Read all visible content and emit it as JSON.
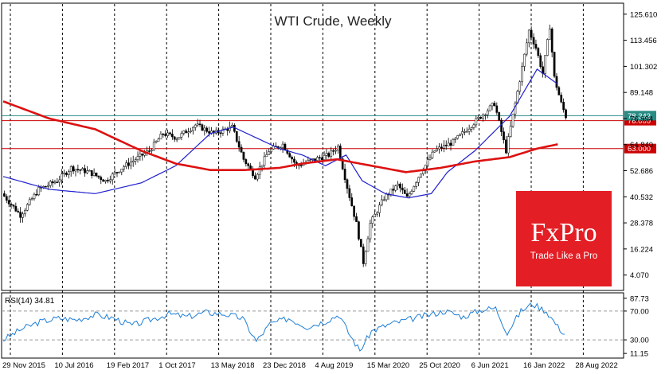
{
  "chart_data": [
    {
      "type": "candlestick",
      "title": "WTI Crude, Weekly",
      "y_ticks": [
        4.07,
        16.224,
        28.378,
        40.532,
        52.686,
        64.84,
        76.994,
        89.148,
        101.302,
        113.456,
        125.61
      ],
      "y_tick_labels": [
        "4.070",
        "16.224",
        "28.378",
        "40.532",
        "52.686",
        "64.840",
        "76.994",
        "89.148",
        "101.302",
        "113.456",
        "125.610"
      ],
      "ylim": [
        -2,
        130
      ],
      "x_tick_labels": [
        "29 Nov 2015",
        "10 Jul 2016",
        "19 Feb 2017",
        "1 Oct 2017",
        "13 May 2018",
        "23 Dec 2018",
        "4 Aug 2019",
        "15 Mar 2020",
        "25 Oct 2020",
        "6 Jun 2021",
        "16 Jan 2022",
        "28 Aug 2022"
      ],
      "grid": "vertical-dashed",
      "horizontal_levels": [
        {
          "label": "76.000",
          "value": 76.0,
          "color": "#cc0000"
        },
        {
          "label": "63.000",
          "value": 63.0,
          "color": "#cc0000"
        }
      ],
      "last_price": {
        "label": "78.342",
        "value": 78.342,
        "color": "#2a8c85"
      },
      "moving_averages": [
        {
          "color": "#2020d0",
          "points": [
            [
              0,
              50
            ],
            [
              20,
              44
            ],
            [
              40,
              42
            ],
            [
              60,
              47
            ],
            [
              75,
              55
            ],
            [
              90,
              70
            ],
            [
              100,
              73
            ],
            [
              110,
              68
            ],
            [
              120,
              63
            ],
            [
              130,
              60
            ],
            [
              140,
              55
            ],
            [
              149,
              60
            ],
            [
              156,
              48
            ],
            [
              166,
              42
            ],
            [
              176,
              40
            ],
            [
              186,
              42
            ],
            [
              193,
              52
            ],
            [
              205,
              62
            ],
            [
              220,
              78
            ],
            [
              232,
              100
            ],
            [
              241,
              93
            ]
          ]
        },
        {
          "color": "#dd1111",
          "points": [
            [
              0,
              85
            ],
            [
              20,
              77
            ],
            [
              40,
              72
            ],
            [
              60,
              62
            ],
            [
              75,
              56
            ],
            [
              90,
              53
            ],
            [
              105,
              53
            ],
            [
              120,
              54
            ],
            [
              130,
              56
            ],
            [
              145,
              58
            ],
            [
              160,
              55
            ],
            [
              175,
              52
            ],
            [
              190,
              54
            ],
            [
              205,
              57
            ],
            [
              220,
              59
            ],
            [
              232,
              63
            ],
            [
              241,
              65
            ]
          ]
        }
      ],
      "price_path": [
        [
          0,
          42
        ],
        [
          8,
          32
        ],
        [
          16,
          44
        ],
        [
          24,
          48
        ],
        [
          30,
          54
        ],
        [
          38,
          52
        ],
        [
          45,
          48
        ],
        [
          52,
          54
        ],
        [
          58,
          58
        ],
        [
          64,
          62
        ],
        [
          70,
          70
        ],
        [
          76,
          68
        ],
        [
          84,
          74
        ],
        [
          92,
          70
        ],
        [
          100,
          73
        ],
        [
          105,
          58
        ],
        [
          110,
          50
        ],
        [
          116,
          62
        ],
        [
          122,
          65
        ],
        [
          128,
          55
        ],
        [
          136,
          58
        ],
        [
          142,
          60
        ],
        [
          146,
          64
        ],
        [
          150,
          45
        ],
        [
          154,
          28
        ],
        [
          157,
          10
        ],
        [
          160,
          28
        ],
        [
          166,
          40
        ],
        [
          172,
          46
        ],
        [
          176,
          40
        ],
        [
          182,
          52
        ],
        [
          188,
          62
        ],
        [
          196,
          66
        ],
        [
          202,
          72
        ],
        [
          208,
          78
        ],
        [
          214,
          84
        ],
        [
          219,
          62
        ],
        [
          225,
          95
        ],
        [
          229,
          118
        ],
        [
          232,
          110
        ],
        [
          235,
          98
        ],
        [
          238,
          120
        ],
        [
          240,
          96
        ],
        [
          243,
          84
        ],
        [
          245,
          78
        ]
      ],
      "series_count": 245
    },
    {
      "type": "line",
      "label": "RSI(14) 34.81",
      "y_ticks": [
        11.15,
        30.0,
        70.0,
        87.73
      ],
      "y_tick_labels": [
        "11.15",
        "30.00",
        "70.00",
        "87.73"
      ],
      "ylim": [
        8,
        92
      ],
      "levels": [
        30,
        70
      ],
      "path": [
        [
          0,
          30
        ],
        [
          8,
          45
        ],
        [
          16,
          55
        ],
        [
          24,
          60
        ],
        [
          32,
          58
        ],
        [
          40,
          65
        ],
        [
          48,
          60
        ],
        [
          56,
          50
        ],
        [
          64,
          58
        ],
        [
          72,
          66
        ],
        [
          80,
          62
        ],
        [
          88,
          68
        ],
        [
          96,
          66
        ],
        [
          104,
          60
        ],
        [
          110,
          28
        ],
        [
          116,
          52
        ],
        [
          124,
          60
        ],
        [
          132,
          48
        ],
        [
          140,
          56
        ],
        [
          146,
          65
        ],
        [
          150,
          40
        ],
        [
          155,
          15
        ],
        [
          160,
          42
        ],
        [
          168,
          52
        ],
        [
          176,
          58
        ],
        [
          184,
          64
        ],
        [
          192,
          70
        ],
        [
          200,
          62
        ],
        [
          208,
          72
        ],
        [
          214,
          74
        ],
        [
          219,
          40
        ],
        [
          225,
          70
        ],
        [
          230,
          80
        ],
        [
          236,
          70
        ],
        [
          241,
          48
        ],
        [
          245,
          35
        ]
      ]
    }
  ],
  "logo": {
    "brand": "FxPro",
    "slogan": "Trade Like a Pro"
  }
}
